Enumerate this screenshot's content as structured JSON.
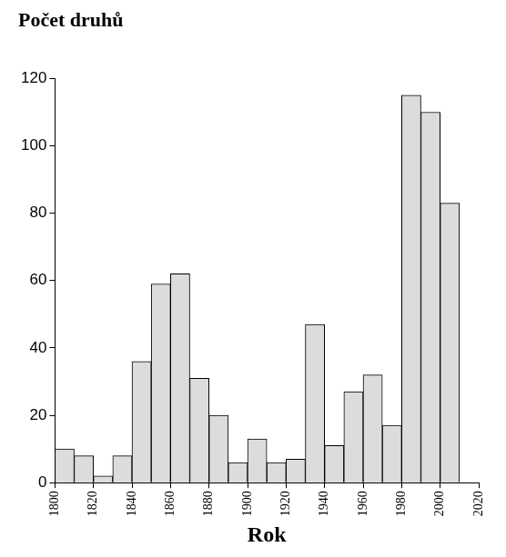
{
  "chart_data": {
    "type": "histogram",
    "title": "Počet druhů",
    "x_label": "Rok",
    "bins": [
      1800,
      1810,
      1820,
      1830,
      1840,
      1850,
      1860,
      1870,
      1880,
      1890,
      1900,
      1910,
      1920,
      1930,
      1940,
      1950,
      1960,
      1970,
      1980,
      1990,
      2000,
      2010
    ],
    "values": [
      10,
      8,
      2,
      8,
      36,
      59,
      62,
      31,
      20,
      6,
      13,
      6,
      7,
      47,
      11,
      27,
      32,
      17,
      115,
      110,
      83
    ],
    "color": "#dcdcdc",
    "xlim": [
      1800,
      2020
    ],
    "xticks": [
      1800,
      1820,
      1840,
      1860,
      1880,
      1900,
      1920,
      1940,
      1960,
      1980,
      2000,
      2020
    ],
    "ylim": [
      0,
      120
    ],
    "yticks": [
      0,
      20,
      40,
      60,
      80,
      100,
      120
    ],
    "grid": false
  }
}
